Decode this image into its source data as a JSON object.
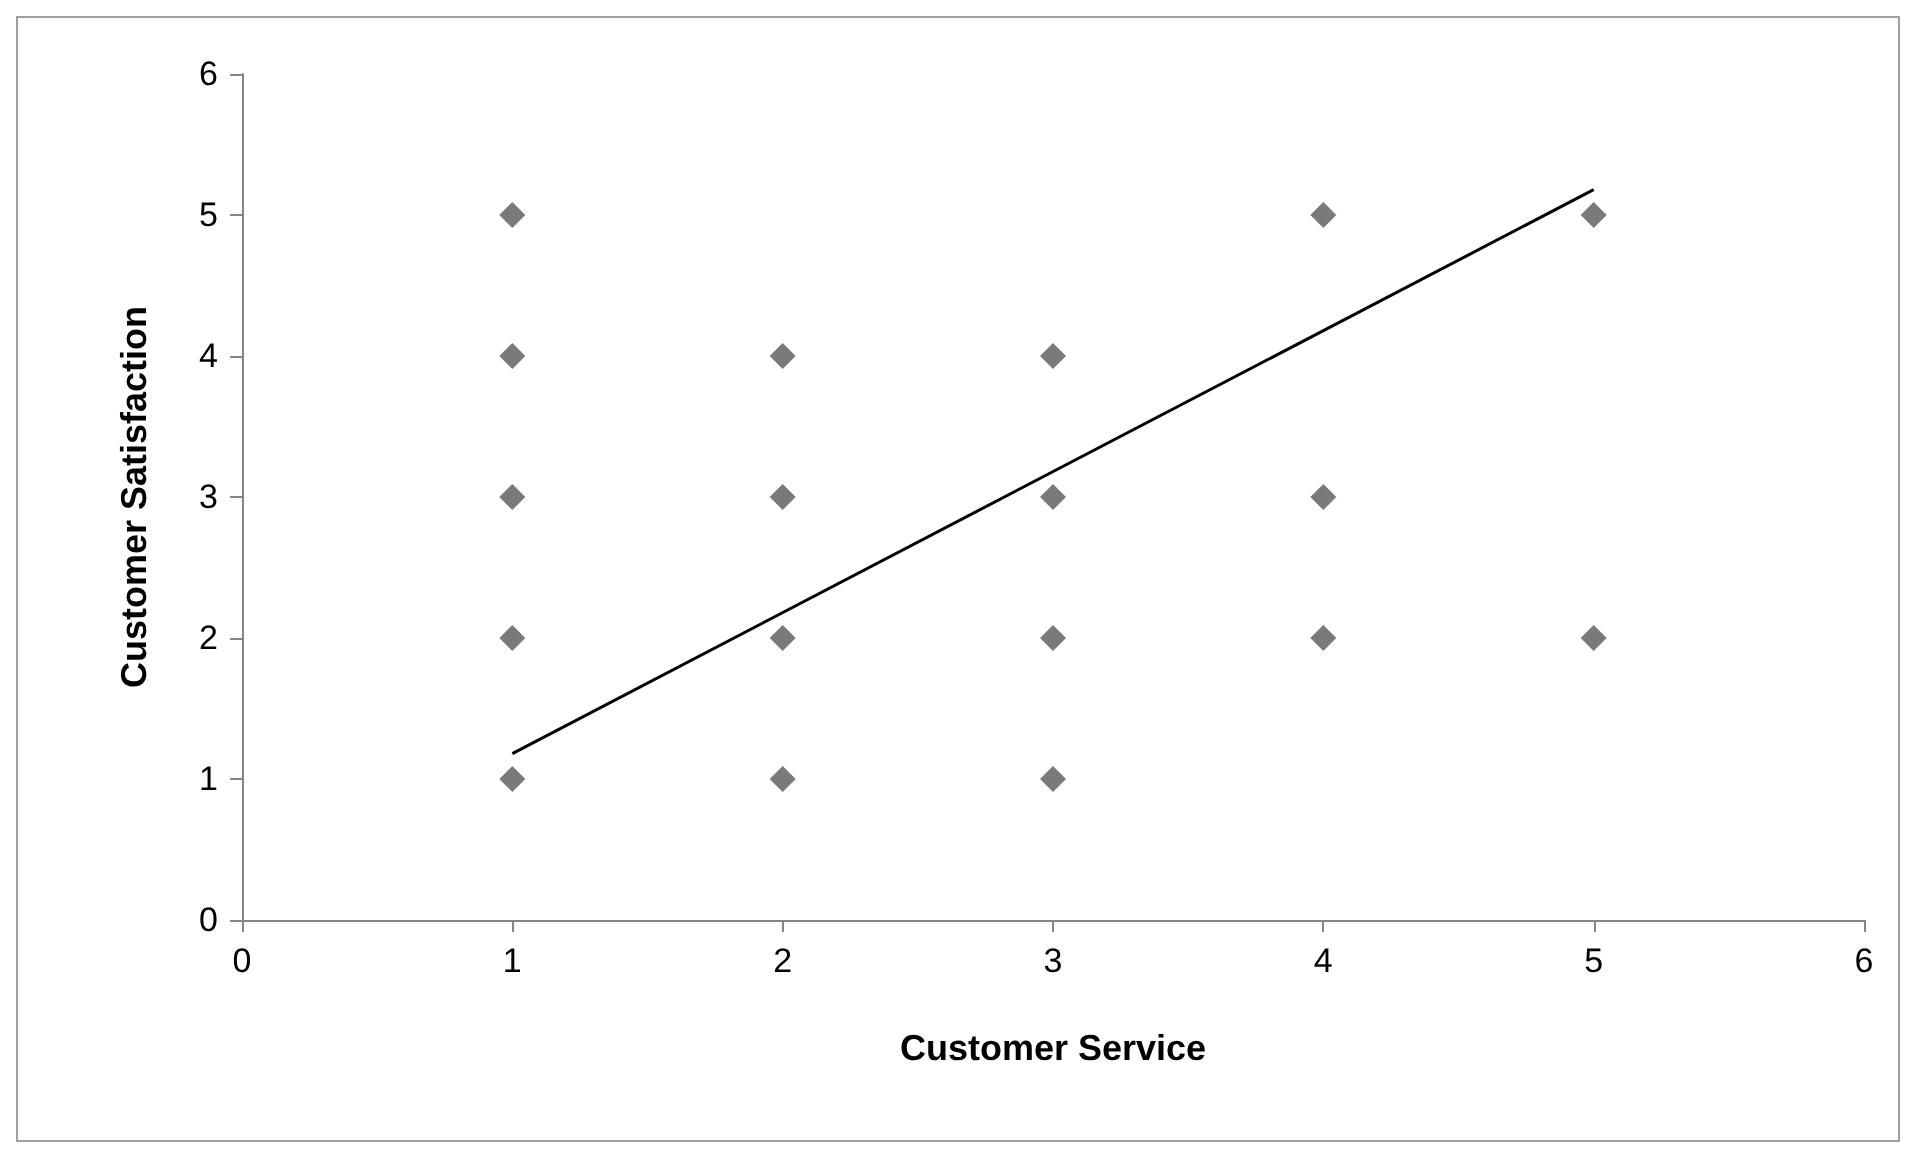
{
  "chart_data": {
    "type": "scatter",
    "xlabel": "Customer Service",
    "ylabel": "Customer Satisfaction",
    "x": [
      1,
      1,
      1,
      1,
      1,
      2,
      2,
      2,
      2,
      3,
      3,
      3,
      3,
      4,
      4,
      4,
      5,
      5
    ],
    "series": [
      {
        "color": "#595959",
        "marker": "diamond",
        "values": [
          1,
          2,
          3,
          4,
          5,
          1,
          2,
          3,
          4,
          1,
          2,
          3,
          4,
          2,
          3,
          5,
          2,
          5
        ]
      },
      {
        "type": "line",
        "color": "#000000",
        "marker": "none",
        "x": [
          1,
          5
        ],
        "values": [
          1.18,
          5.18
        ]
      }
    ],
    "xlim": [
      0,
      6
    ],
    "ylim": [
      0,
      6
    ],
    "xticks": [
      0,
      1,
      2,
      3,
      4,
      5,
      6
    ],
    "yticks": [
      0,
      1,
      2,
      3,
      4,
      5,
      6
    ],
    "grid": false
  }
}
